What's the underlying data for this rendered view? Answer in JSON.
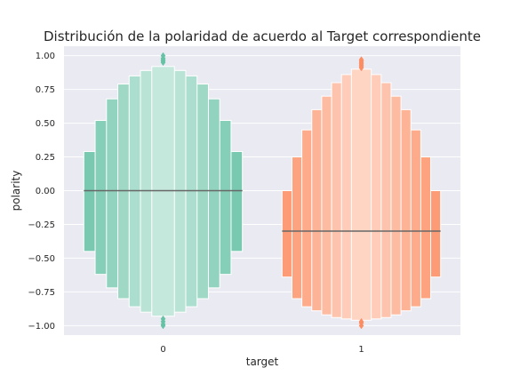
{
  "chart_data": {
    "type": "boxen",
    "title": "Distribución de la polaridad de acuerdo al Target correspondiente",
    "xlabel": "target",
    "ylabel": "polarity",
    "categories": [
      "0",
      "1"
    ],
    "ylim": [
      -1.07,
      1.07
    ],
    "yticks": [
      1.0,
      0.75,
      0.5,
      0.25,
      0.0,
      -0.25,
      -0.5,
      -0.75,
      -1.0
    ],
    "ytick_labels": [
      "1.00",
      "0.75",
      "0.50",
      "0.25",
      "0.00",
      "−0.25",
      "−0.50",
      "−0.75",
      "−1.00"
    ],
    "grid": true,
    "colors": {
      "0": "#66c2a5",
      "1": "#fc8d62",
      "background": "#eaeaf2",
      "median": "#676767"
    },
    "series": [
      {
        "category": "0",
        "median": 0.0,
        "letter_values": [
          [
            -0.45,
            0.29
          ],
          [
            -0.62,
            0.52
          ],
          [
            -0.72,
            0.68
          ],
          [
            -0.8,
            0.79
          ],
          [
            -0.86,
            0.85
          ],
          [
            -0.9,
            0.89
          ],
          [
            -0.93,
            0.92
          ]
        ],
        "outliers": [
          -0.95,
          -0.97,
          -0.99,
          -1.0,
          0.95,
          0.96,
          0.97,
          0.98,
          1.0
        ]
      },
      {
        "category": "1",
        "median": -0.3,
        "letter_values": [
          [
            -0.64,
            0.0
          ],
          [
            -0.8,
            0.25
          ],
          [
            -0.86,
            0.45
          ],
          [
            -0.89,
            0.6
          ],
          [
            -0.92,
            0.7
          ],
          [
            -0.94,
            0.8
          ],
          [
            -0.95,
            0.86
          ],
          [
            -0.96,
            0.9
          ]
        ],
        "outliers": [
          -0.97,
          -0.98,
          -1.0,
          0.91,
          0.92,
          0.93,
          0.94,
          0.95,
          0.96,
          0.97
        ]
      }
    ]
  }
}
